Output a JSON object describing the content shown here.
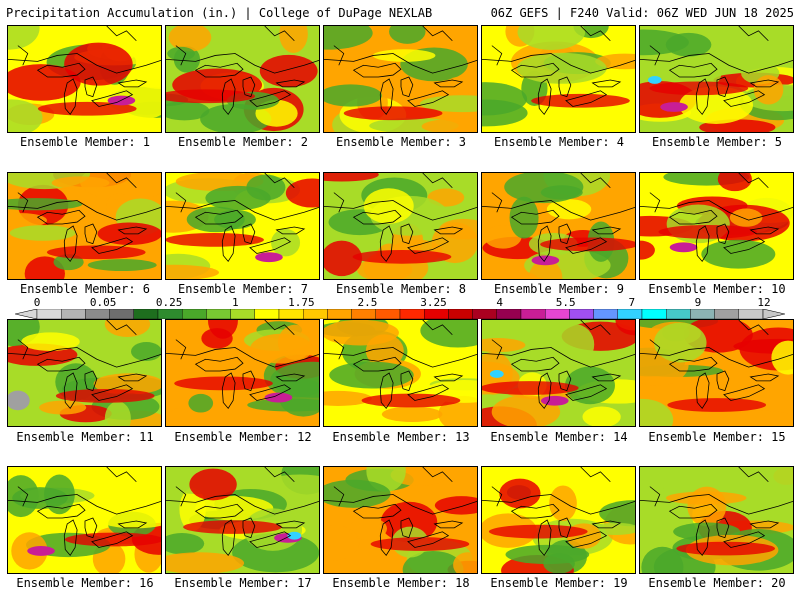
{
  "header": {
    "left": "Precipitation Accumulation (in.) | College of DuPage NEXLAB",
    "right": "06Z GEFS | F240 Valid: 06Z WED JUN 18 2025"
  },
  "panels": [
    {
      "label": "Ensemble Member: 1"
    },
    {
      "label": "Ensemble Member: 2"
    },
    {
      "label": "Ensemble Member: 3"
    },
    {
      "label": "Ensemble Member: 4"
    },
    {
      "label": "Ensemble Member: 5"
    },
    {
      "label": "Ensemble Member: 6"
    },
    {
      "label": "Ensemble Member: 7"
    },
    {
      "label": "Ensemble Member: 8"
    },
    {
      "label": "Ensemble Member: 9"
    },
    {
      "label": "Ensemble Member: 10"
    },
    {
      "label": "Ensemble Member: 11"
    },
    {
      "label": "Ensemble Member: 12"
    },
    {
      "label": "Ensemble Member: 13"
    },
    {
      "label": "Ensemble Member: 14"
    },
    {
      "label": "Ensemble Member: 15"
    },
    {
      "label": "Ensemble Member: 16"
    },
    {
      "label": "Ensemble Member: 17"
    },
    {
      "label": "Ensemble Member: 18"
    },
    {
      "label": "Ensemble Member: 19"
    },
    {
      "label": "Ensemble Member: 20"
    }
  ],
  "colorbar": {
    "tick_labels": [
      "0",
      "0.05",
      "0.25",
      "1",
      "1.75",
      "2.5",
      "3.25",
      "4",
      "5.5",
      "7",
      "9",
      "12"
    ],
    "colors": [
      "#d8d8d8",
      "#b4b4b4",
      "#8c8c8c",
      "#6e6e6e",
      "#1e6e1e",
      "#2e8b2e",
      "#4aa82a",
      "#78c832",
      "#a8dc28",
      "#ffff00",
      "#ffe600",
      "#ffc800",
      "#ffa500",
      "#ff8000",
      "#ff5a00",
      "#ff2800",
      "#e60000",
      "#c80000",
      "#aa0020",
      "#960050",
      "#c81e96",
      "#e646d2",
      "#a050f0",
      "#6496ff",
      "#32d2ff",
      "#00ffff",
      "#46c8c8",
      "#8cb4b4",
      "#a0a0a0",
      "#c8c8c8"
    ]
  },
  "palette": {
    "green": "#4aa82a",
    "light_green": "#a8dc28",
    "yellow": "#ffff00",
    "orange": "#ffa500",
    "red": "#e60000",
    "magenta": "#c81e96",
    "cyan": "#32d2ff",
    "gray": "#a0a0a0"
  }
}
